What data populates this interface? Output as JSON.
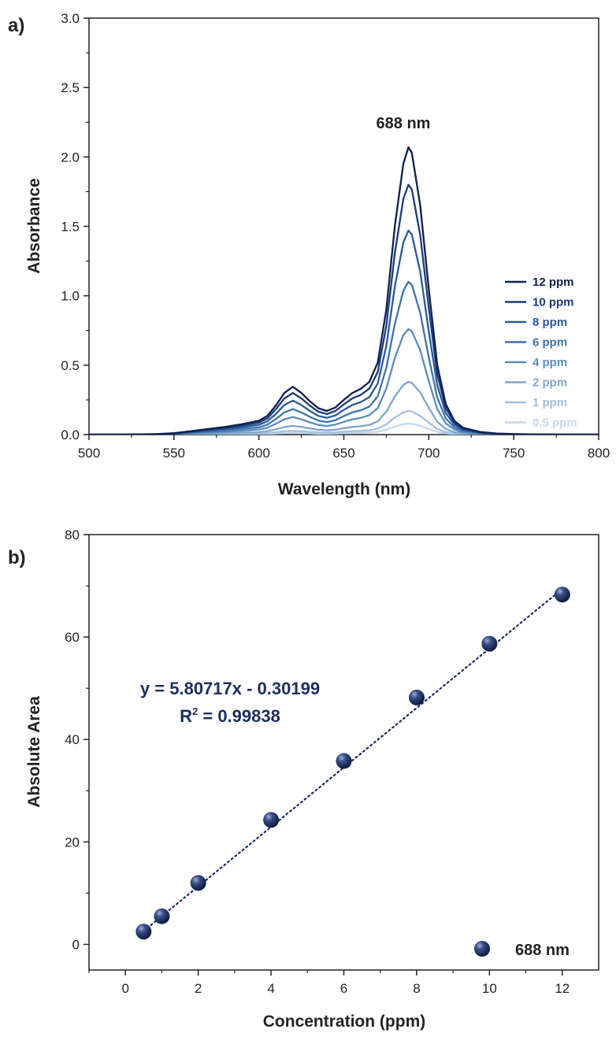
{
  "chart_data": [
    {
      "type": "line",
      "panel_label": "a)",
      "xlabel": "Wavelength (nm)",
      "ylabel": "Absorbance",
      "xlim": [
        500,
        800
      ],
      "ylim": [
        0,
        3.0
      ],
      "xticks": [
        "500",
        "550",
        "600",
        "650",
        "700",
        "750",
        "800"
      ],
      "yticks": [
        "0.0",
        "0.5",
        "1.0",
        "1.5",
        "2.0",
        "2.5",
        "3.0"
      ],
      "annotation": "688 nm",
      "annotation_x": 688,
      "annotation_y": 2.2,
      "legend_position": "right",
      "x": [
        500,
        520,
        540,
        550,
        560,
        570,
        580,
        590,
        600,
        605,
        610,
        615,
        620,
        625,
        630,
        635,
        640,
        645,
        650,
        655,
        660,
        665,
        670,
        675,
        680,
        685,
        688,
        690,
        695,
        700,
        705,
        710,
        715,
        720,
        730,
        740,
        750,
        760,
        780,
        800
      ],
      "series": [
        {
          "name": "12 ppm",
          "color": "#0f1f4d",
          "values": [
            0.0,
            0.0,
            0.004,
            0.01,
            0.025,
            0.04,
            0.055,
            0.075,
            0.1,
            0.135,
            0.21,
            0.3,
            0.345,
            0.3,
            0.24,
            0.19,
            0.17,
            0.195,
            0.25,
            0.3,
            0.33,
            0.38,
            0.52,
            0.9,
            1.5,
            1.95,
            2.07,
            2.03,
            1.65,
            1.05,
            0.5,
            0.22,
            0.1,
            0.05,
            0.02,
            0.008,
            0.004,
            0.002,
            0.0,
            0.0
          ]
        },
        {
          "name": "10 ppm",
          "color": "#1b3b7a",
          "values": [
            0.0,
            0.0,
            0.003,
            0.009,
            0.022,
            0.035,
            0.048,
            0.065,
            0.087,
            0.117,
            0.183,
            0.261,
            0.3,
            0.261,
            0.209,
            0.165,
            0.148,
            0.17,
            0.218,
            0.261,
            0.287,
            0.331,
            0.452,
            0.783,
            1.305,
            1.697,
            1.8,
            1.766,
            1.436,
            0.914,
            0.435,
            0.191,
            0.087,
            0.044,
            0.017,
            0.007,
            0.003,
            0.002,
            0.0,
            0.0
          ]
        },
        {
          "name": "8 ppm",
          "color": "#2a5a96",
          "values": [
            0.0,
            0.0,
            0.003,
            0.007,
            0.018,
            0.029,
            0.039,
            0.053,
            0.071,
            0.096,
            0.149,
            0.213,
            0.245,
            0.213,
            0.17,
            0.135,
            0.121,
            0.138,
            0.178,
            0.213,
            0.234,
            0.27,
            0.369,
            0.639,
            1.065,
            1.384,
            1.47,
            1.441,
            1.172,
            0.746,
            0.355,
            0.156,
            0.071,
            0.036,
            0.014,
            0.006,
            0.003,
            0.001,
            0.0,
            0.0
          ]
        },
        {
          "name": "6 ppm",
          "color": "#3f74aa",
          "values": [
            0.0,
            0.0,
            0.002,
            0.005,
            0.013,
            0.021,
            0.029,
            0.04,
            0.053,
            0.072,
            0.112,
            0.16,
            0.184,
            0.16,
            0.128,
            0.101,
            0.09,
            0.104,
            0.133,
            0.16,
            0.175,
            0.202,
            0.276,
            0.479,
            0.797,
            1.036,
            1.1,
            1.079,
            0.877,
            0.558,
            0.266,
            0.117,
            0.053,
            0.027,
            0.011,
            0.004,
            0.002,
            0.001,
            0.0,
            0.0
          ]
        },
        {
          "name": "4 ppm",
          "color": "#5a8cbd",
          "values": [
            0.0,
            0.0,
            0.001,
            0.004,
            0.009,
            0.015,
            0.02,
            0.028,
            0.037,
            0.05,
            0.078,
            0.11,
            0.127,
            0.11,
            0.088,
            0.07,
            0.062,
            0.072,
            0.092,
            0.11,
            0.121,
            0.14,
            0.191,
            0.331,
            0.551,
            0.716,
            0.76,
            0.745,
            0.606,
            0.386,
            0.184,
            0.081,
            0.037,
            0.018,
            0.007,
            0.003,
            0.001,
            0.001,
            0.0,
            0.0
          ]
        },
        {
          "name": "2 ppm",
          "color": "#7ea6cf",
          "values": [
            0.0,
            0.0,
            0.001,
            0.002,
            0.005,
            0.007,
            0.01,
            0.014,
            0.018,
            0.025,
            0.038,
            0.055,
            0.063,
            0.055,
            0.044,
            0.035,
            0.031,
            0.036,
            0.046,
            0.055,
            0.06,
            0.07,
            0.095,
            0.165,
            0.275,
            0.357,
            0.38,
            0.372,
            0.303,
            0.193,
            0.092,
            0.04,
            0.018,
            0.009,
            0.004,
            0.001,
            0.001,
            0.0,
            0.0,
            0.0
          ]
        },
        {
          "name": "1 ppm",
          "color": "#a3c0df",
          "values": [
            0.0,
            0.0,
            0.0,
            0.001,
            0.002,
            0.003,
            0.005,
            0.006,
            0.008,
            0.011,
            0.017,
            0.025,
            0.028,
            0.025,
            0.02,
            0.016,
            0.014,
            0.016,
            0.021,
            0.025,
            0.027,
            0.031,
            0.043,
            0.074,
            0.123,
            0.16,
            0.17,
            0.167,
            0.135,
            0.086,
            0.041,
            0.018,
            0.008,
            0.004,
            0.002,
            0.001,
            0.0,
            0.0,
            0.0,
            0.0
          ]
        },
        {
          "name": "0.5 ppm",
          "color": "#c3d6ec",
          "values": [
            0.0,
            0.0,
            0.0,
            0.0,
            0.001,
            0.002,
            0.002,
            0.003,
            0.004,
            0.005,
            0.008,
            0.012,
            0.013,
            0.012,
            0.009,
            0.007,
            0.007,
            0.008,
            0.01,
            0.012,
            0.013,
            0.015,
            0.02,
            0.035,
            0.058,
            0.075,
            0.08,
            0.078,
            0.064,
            0.041,
            0.019,
            0.009,
            0.004,
            0.002,
            0.001,
            0.0,
            0.0,
            0.0,
            0.0,
            0.0
          ]
        }
      ]
    },
    {
      "type": "scatter",
      "panel_label": "b)",
      "xlabel": "Concentration (ppm)",
      "ylabel": "Absolute Area",
      "xlim": [
        -1,
        13
      ],
      "ylim": [
        -5,
        80
      ],
      "xticks": [
        "0",
        "2",
        "4",
        "6",
        "8",
        "10",
        "12"
      ],
      "yticks": [
        "0",
        "20",
        "40",
        "60",
        "80"
      ],
      "equation": "y = 5.80717x - 0.30199",
      "r2_prefix": "R",
      "r2_sup": "2",
      "r2_value": " = 0.99838",
      "fit": {
        "slope": 5.80717,
        "intercept": -0.30199
      },
      "legend_position": "bottom-right",
      "series": [
        {
          "name": "688 nm",
          "color": "#1c2e5c",
          "x": [
            0.5,
            1,
            2,
            4,
            6,
            8,
            10,
            12
          ],
          "y": [
            2.5,
            5.5,
            12.0,
            24.3,
            35.8,
            48.2,
            58.7,
            68.3
          ]
        }
      ]
    }
  ]
}
